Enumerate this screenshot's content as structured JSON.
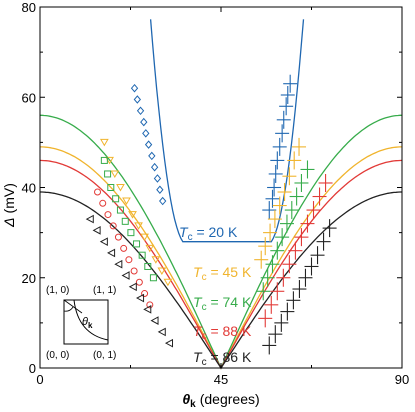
{
  "chart_data": {
    "type": "scatter",
    "xlabel_symbol": "θ",
    "xlabel_subscript": "k",
    "xlabel_unit": "(degrees)",
    "ylabel_symbol": "Δ",
    "ylabel_unit": "(mV)",
    "xlim": [
      0,
      90
    ],
    "ylim": [
      0,
      80
    ],
    "xticks": [
      "0",
      "45",
      "90"
    ],
    "yticks": [
      "0",
      "20",
      "40",
      "60",
      "80"
    ],
    "inset": {
      "corner_labels": [
        "(1, 0)",
        "(1, 1)",
        "(0, 0)",
        "(0, 1)"
      ],
      "angle_symbol": "θ",
      "angle_subscript": "k"
    },
    "series": [
      {
        "label_prefix": "T",
        "label_subscript": "c",
        "label_value": " = 20 K",
        "color": "#1f67b1",
        "marker": "diamond",
        "fit_amplitude": 28,
        "fit_max": 80,
        "fit_floor": 28,
        "fit_floor_range": [
          35.5,
          57.5
        ],
        "points_left": [
          [
            23.5,
            62
          ],
          [
            24.2,
            59.5
          ],
          [
            25,
            57
          ],
          [
            25.8,
            54.5
          ],
          [
            26.3,
            52
          ],
          [
            27,
            49.5
          ],
          [
            27.8,
            47
          ],
          [
            28.5,
            44.5
          ],
          [
            29.2,
            42
          ],
          [
            29.8,
            39.5
          ],
          [
            30.5,
            37
          ]
        ],
        "points_right": [
          [
            57,
            35
          ],
          [
            57.8,
            37.5
          ],
          [
            58.2,
            40
          ],
          [
            58.6,
            43
          ],
          [
            59,
            46
          ],
          [
            59.6,
            49
          ],
          [
            60.2,
            52
          ],
          [
            60.6,
            55
          ],
          [
            61.2,
            58
          ],
          [
            61.6,
            60.5
          ],
          [
            62.2,
            63
          ]
        ]
      },
      {
        "label_prefix": "T",
        "label_subscript": "c",
        "label_value": " = 45 K",
        "color": "#f0b42d",
        "marker": "triangle-down",
        "fit_amplitude": 49,
        "fit_max": 49,
        "fit_floor": 0,
        "fit_floor_range": [
          45,
          45
        ],
        "points_left": [
          [
            16,
            50
          ],
          [
            17.3,
            46
          ],
          [
            18.6,
            43
          ],
          [
            20,
            40
          ],
          [
            21.5,
            37
          ],
          [
            23,
            34
          ],
          [
            24.5,
            31.5
          ],
          [
            26,
            29
          ],
          [
            27.3,
            26.5
          ],
          [
            28.8,
            24
          ],
          [
            30.3,
            21.5
          ],
          [
            31.8,
            19
          ]
        ],
        "points_right": [
          [
            55,
            24
          ],
          [
            56,
            27
          ],
          [
            57.2,
            30
          ],
          [
            58.4,
            33
          ],
          [
            59.6,
            36
          ],
          [
            60.8,
            39
          ],
          [
            62,
            42.5
          ],
          [
            63.2,
            46
          ],
          [
            64.4,
            49
          ]
        ]
      },
      {
        "label_prefix": "T",
        "label_subscript": "c",
        "label_value": " = 74 K",
        "color": "#37ac4b",
        "marker": "square",
        "fit_amplitude": 56,
        "fit_max": 67,
        "fit_floor": 0,
        "fit_floor_range": [
          45,
          45
        ],
        "points_left": [
          [
            16,
            46
          ],
          [
            16.8,
            43
          ],
          [
            17.6,
            40
          ],
          [
            18.8,
            37.5
          ],
          [
            20,
            35
          ],
          [
            21.2,
            32.5
          ],
          [
            22.6,
            30
          ],
          [
            24,
            27.5
          ],
          [
            25.4,
            25
          ],
          [
            26.8,
            22.5
          ],
          [
            28.2,
            20
          ]
        ],
        "points_right": [
          [
            55.5,
            17
          ],
          [
            56.6,
            20
          ],
          [
            57.8,
            23
          ],
          [
            59,
            26
          ],
          [
            60.2,
            29
          ],
          [
            61.4,
            32
          ],
          [
            62.6,
            35
          ],
          [
            63.8,
            38
          ],
          [
            65,
            41
          ],
          [
            66.5,
            44
          ]
        ]
      },
      {
        "label_prefix": "T",
        "label_subscript": "c",
        "label_value": " = 88 K",
        "color": "#e23a37",
        "marker": "circle",
        "fit_amplitude": 46,
        "fit_max": 46,
        "fit_floor": 0,
        "fit_floor_range": [
          45,
          45
        ],
        "points_left": [
          [
            14.3,
            39
          ],
          [
            15.6,
            36.5
          ],
          [
            16.9,
            34
          ],
          [
            18.2,
            31.5
          ],
          [
            19.5,
            29
          ],
          [
            20.8,
            26.5
          ],
          [
            22.1,
            24
          ],
          [
            23.4,
            21.5
          ],
          [
            24.7,
            19
          ],
          [
            26,
            16.5
          ],
          [
            27.3,
            14
          ]
        ],
        "points_right": [
          [
            56,
            11
          ],
          [
            57.5,
            14
          ],
          [
            59,
            17
          ],
          [
            60.5,
            20
          ],
          [
            62,
            23
          ],
          [
            63.5,
            26
          ],
          [
            65,
            29
          ],
          [
            66.5,
            32
          ],
          [
            68,
            35
          ],
          [
            69.5,
            38
          ],
          [
            71,
            41
          ]
        ]
      },
      {
        "label_prefix": "T",
        "label_subscript": "c",
        "label_value": " = 86 K",
        "color": "#222222",
        "marker": "triangle-left",
        "fit_amplitude": 39,
        "fit_max": 39,
        "fit_floor": 0,
        "fit_floor_range": [
          45,
          45
        ],
        "points_left": [
          [
            12.5,
            33
          ],
          [
            14.2,
            30.5
          ],
          [
            16,
            28
          ],
          [
            17.8,
            25.5
          ],
          [
            19.6,
            23
          ],
          [
            21.4,
            20.5
          ],
          [
            23.2,
            18
          ],
          [
            25,
            15.5
          ],
          [
            26.8,
            13
          ],
          [
            28.6,
            10.5
          ],
          [
            30.4,
            8
          ],
          [
            32.2,
            5.5
          ]
        ],
        "points_right": [
          [
            57,
            5
          ],
          [
            58.5,
            7.5
          ],
          [
            60,
            10
          ],
          [
            61.5,
            12.5
          ],
          [
            63,
            15
          ],
          [
            64.5,
            17.5
          ],
          [
            66,
            20
          ],
          [
            67.5,
            22.5
          ],
          [
            69,
            25
          ],
          [
            70.5,
            28
          ],
          [
            72,
            31
          ]
        ]
      }
    ]
  }
}
